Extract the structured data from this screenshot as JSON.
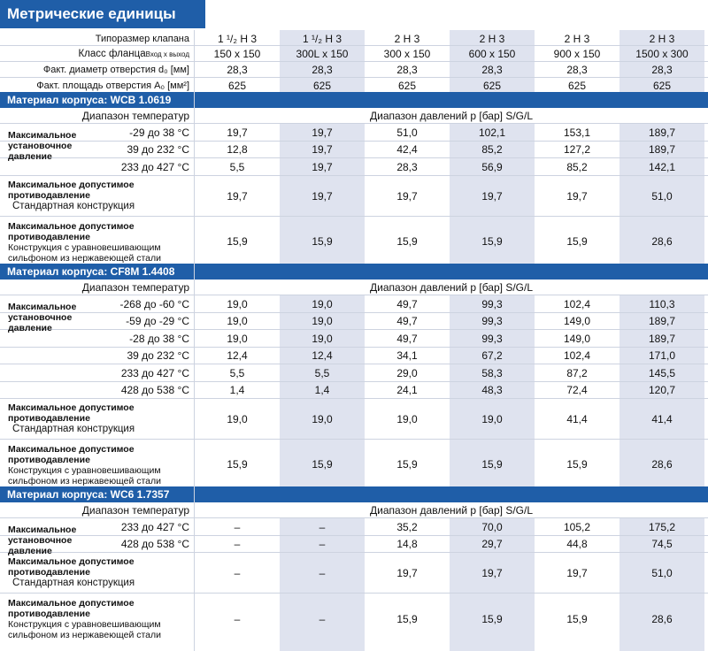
{
  "title": "Метрические единицы",
  "header": {
    "rows": [
      {
        "label": "Типоразмер клапана",
        "values": [
          "1 ¹/₂ H 3",
          "1 ¹/₂ H 3",
          "2 H 3",
          "2 H 3",
          "2 H 3",
          "2 H 3"
        ]
      },
      {
        "label": "Класс фланца",
        "label_sub": "Вход x выход",
        "values": [
          "150 x 150",
          "300L x 150",
          "300 x 150",
          "600 x 150",
          "900 x 150",
          "1500 x 300"
        ]
      },
      {
        "label": "Факт. диаметр отверстия d₀ [мм]",
        "values": [
          "28,3",
          "28,3",
          "28,3",
          "28,3",
          "28,3",
          "28,3"
        ]
      },
      {
        "label": "Факт. площадь отверстия A₀ [мм²]",
        "values": [
          "625",
          "625",
          "625",
          "625",
          "625",
          "625"
        ]
      }
    ]
  },
  "sections": [
    {
      "band": "Материал корпуса: WCB 1.0619",
      "temp_label": "Диапазон температур",
      "pressure_label": "Диапазон давлений p [бар] S/G/L",
      "set_pressure_label": [
        "Максимальное",
        "установочное",
        "давление"
      ],
      "rows": [
        {
          "temp": "-29 до 38 °C",
          "values": [
            "19,7",
            "19,7",
            "51,0",
            "102,1",
            "153,1",
            "189,7"
          ]
        },
        {
          "temp": "39 до 232 °C",
          "values": [
            "12,8",
            "19,7",
            "42,4",
            "85,2",
            "127,2",
            "189,7"
          ]
        },
        {
          "temp": "233 до 427 °C",
          "values": [
            "5,5",
            "19,7",
            "28,3",
            "56,9",
            "85,2",
            "142,1"
          ]
        }
      ],
      "back_std": {
        "title": [
          "Максимальное допустимое",
          "противодавление"
        ],
        "note": "Стандартная конструкция",
        "values": [
          "19,7",
          "19,7",
          "19,7",
          "19,7",
          "19,7",
          "51,0"
        ]
      },
      "back_bal": {
        "title": [
          "Максимальное допустимое",
          "противодавление"
        ],
        "note": [
          "Конструкция с уравновешивающим",
          "сильфоном из нержавеющей стали"
        ],
        "values": [
          "15,9",
          "15,9",
          "15,9",
          "15,9",
          "15,9",
          "28,6"
        ]
      }
    },
    {
      "band": "Материал корпуса: CF8M 1.4408",
      "temp_label": "Диапазон температур",
      "pressure_label": "Диапазон давлений p [бар] S/G/L",
      "set_pressure_label": [
        "Максимальное",
        "установочное",
        "давление"
      ],
      "rows": [
        {
          "temp": "-268 до -60 °C",
          "values": [
            "19,0",
            "19,0",
            "49,7",
            "99,3",
            "102,4",
            "110,3"
          ]
        },
        {
          "temp": "-59 до -29 °C",
          "values": [
            "19,0",
            "19,0",
            "49,7",
            "99,3",
            "149,0",
            "189,7"
          ]
        },
        {
          "temp": "-28 до 38 °C",
          "values": [
            "19,0",
            "19,0",
            "49,7",
            "99,3",
            "149,0",
            "189,7"
          ]
        },
        {
          "temp": "39 до 232 °C",
          "values": [
            "12,4",
            "12,4",
            "34,1",
            "67,2",
            "102,4",
            "171,0"
          ]
        },
        {
          "temp": "233 до 427 °C",
          "values": [
            "5,5",
            "5,5",
            "29,0",
            "58,3",
            "87,2",
            "145,5"
          ]
        },
        {
          "temp": "428 до 538 °C",
          "values": [
            "1,4",
            "1,4",
            "24,1",
            "48,3",
            "72,4",
            "120,7"
          ]
        }
      ],
      "back_std": {
        "title": [
          "Максимальное допустимое",
          "противодавление"
        ],
        "note": "Стандартная конструкция",
        "values": [
          "19,0",
          "19,0",
          "19,0",
          "19,0",
          "41,4",
          "41,4"
        ]
      },
      "back_bal": {
        "title": [
          "Максимальное допустимое",
          "противодавление"
        ],
        "note": [
          "Конструкция с уравновешивающим",
          "сильфоном из нержавеющей стали"
        ],
        "values": [
          "15,9",
          "15,9",
          "15,9",
          "15,9",
          "15,9",
          "28,6"
        ]
      }
    },
    {
      "band": "Материал корпуса: WC6 1.7357",
      "temp_label": "Диапазон температур",
      "pressure_label": "Диапазон давлений p [бар] S/G/L",
      "set_pressure_label": [
        "Максимальное",
        "установочное",
        "давление"
      ],
      "rows": [
        {
          "temp": "233 до 427 °C",
          "values": [
            "–",
            "–",
            "35,2",
            "70,0",
            "105,2",
            "175,2"
          ]
        },
        {
          "temp": "428 до 538 °C",
          "values": [
            "–",
            "–",
            "14,8",
            "29,7",
            "44,8",
            "74,5"
          ]
        }
      ],
      "back_std": {
        "title": [
          "Максимальное допустимое",
          "противодавление"
        ],
        "note": "Стандартная конструкция",
        "values": [
          "–",
          "–",
          "19,7",
          "19,7",
          "19,7",
          "51,0"
        ]
      },
      "back_bal": {
        "title": [
          "Максимальное допустимое",
          "противодавление"
        ],
        "note": [
          "Конструкция с уравновешивающим",
          "сильфоном из нержавеющей стали"
        ],
        "values": [
          "–",
          "–",
          "15,9",
          "15,9",
          "15,9",
          "28,6"
        ]
      }
    }
  ]
}
